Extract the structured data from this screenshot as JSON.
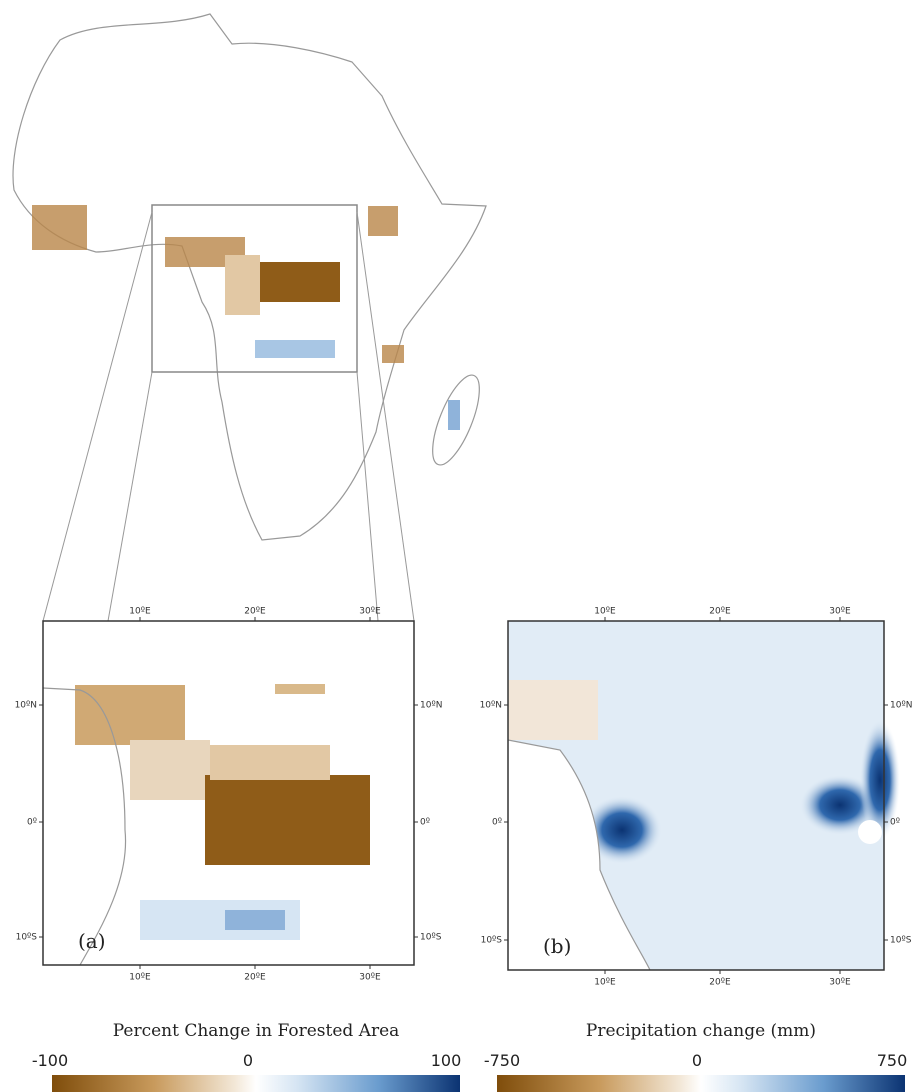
{
  "map": {
    "panels": [
      {
        "label": "(a)"
      },
      {
        "label": "(b)"
      }
    ],
    "lon_ticks": [
      "10ºE",
      "20ºE",
      "30ºE"
    ],
    "lat_ticks": [
      "10ºN",
      "0º",
      "10ºS"
    ],
    "colorbars": [
      {
        "title": "Percent Change in Forested Area",
        "ticks": [
          -100,
          0,
          100
        ]
      },
      {
        "title": "Precipitation change (mm)",
        "ticks": [
          -750,
          0,
          750
        ]
      }
    ]
  }
}
